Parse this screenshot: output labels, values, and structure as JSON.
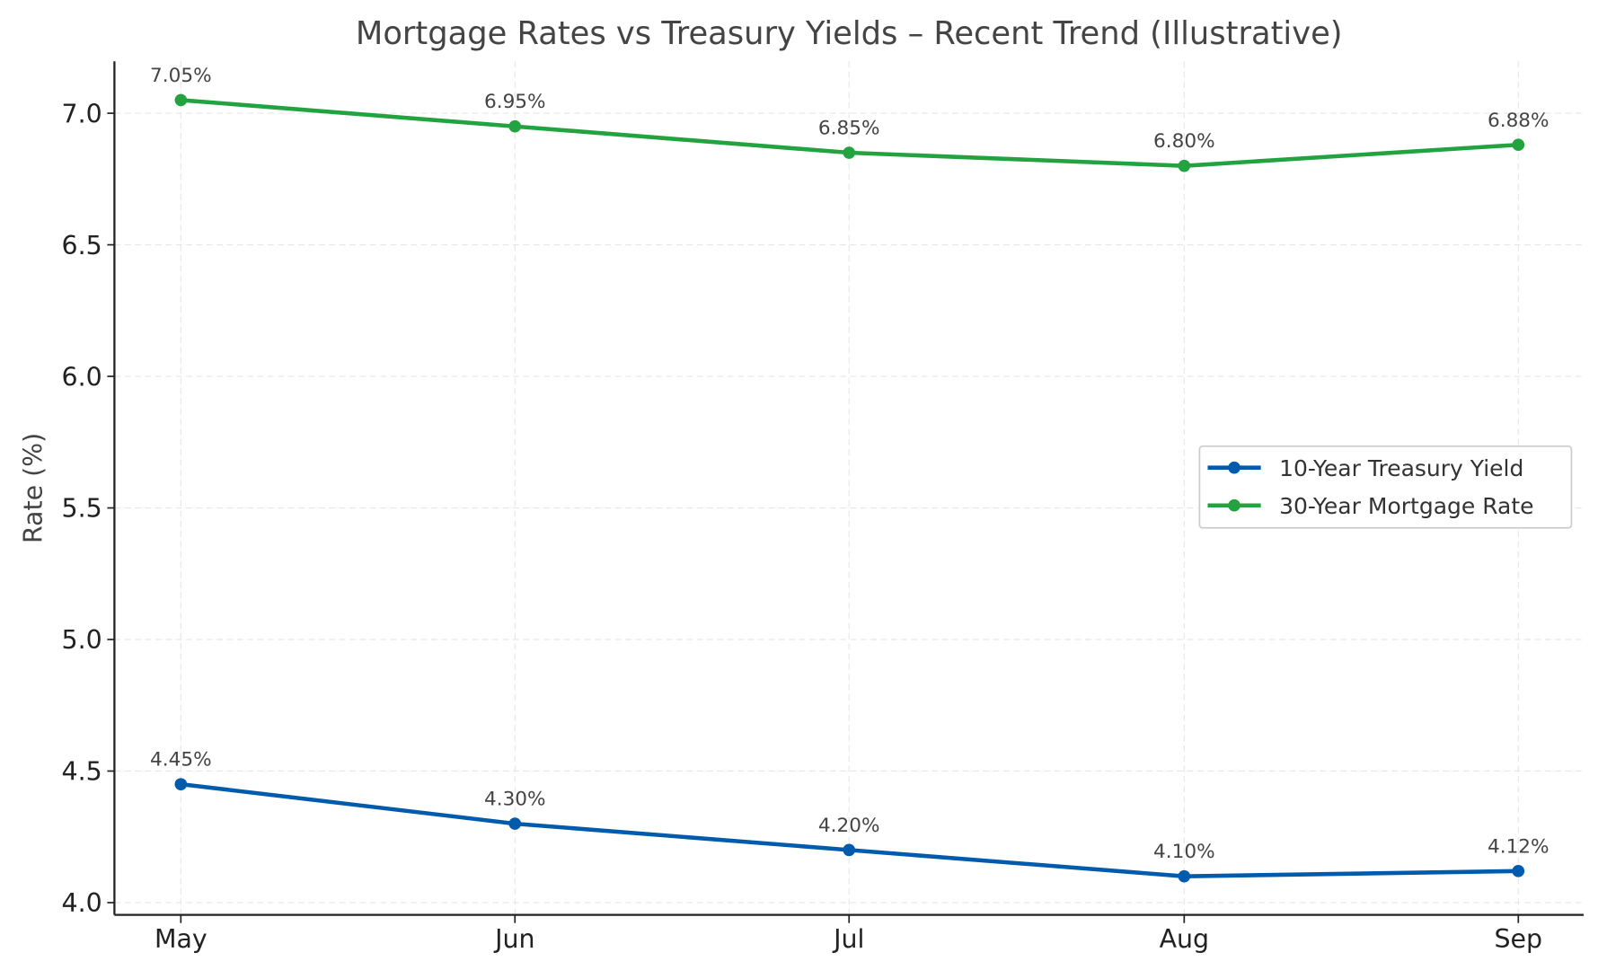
{
  "chart_data": {
    "type": "line",
    "title": "Mortgage Rates vs Treasury Yields – Recent Trend (Illustrative)",
    "xlabel": "",
    "ylabel": "Rate (%)",
    "categories": [
      "May",
      "Jun",
      "Jul",
      "Aug",
      "Sep"
    ],
    "ylim": [
      3.95,
      7.2
    ],
    "yticks": [
      "4.0",
      "4.5",
      "5.0",
      "5.5",
      "6.0",
      "6.5",
      "7.0"
    ],
    "grid": true,
    "legend_position": "center-right",
    "series": [
      {
        "name": "10-Year Treasury Yield",
        "color": "#005BAC",
        "values": [
          4.45,
          4.3,
          4.2,
          4.1,
          4.12
        ],
        "labels": [
          "4.45%",
          "4.30%",
          "4.20%",
          "4.10%",
          "4.12%"
        ]
      },
      {
        "name": "30-Year Mortgage Rate",
        "color": "#22A33F",
        "values": [
          7.05,
          6.95,
          6.85,
          6.8,
          6.88
        ],
        "labels": [
          "7.05%",
          "6.95%",
          "6.85%",
          "6.80%",
          "6.88%"
        ]
      }
    ]
  }
}
